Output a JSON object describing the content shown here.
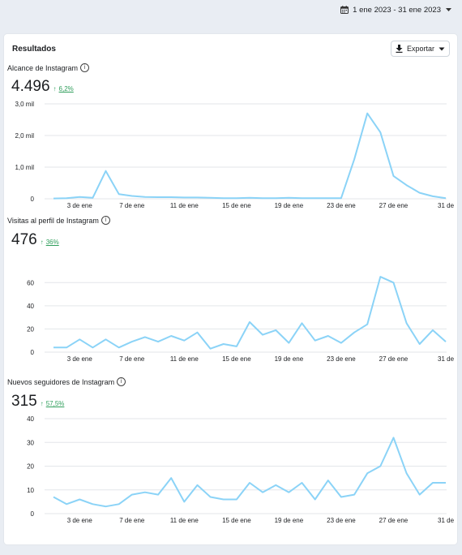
{
  "header": {
    "date_range": "1 ene 2023 - 31 ene 2023"
  },
  "results": {
    "title": "Resultados",
    "export_label": "Exportar"
  },
  "metrics": [
    {
      "label": "Alcance de Instagram",
      "value": "4.496",
      "change": "6,2%"
    },
    {
      "label": "Visitas al perfil de Instagram",
      "value": "476",
      "change": "36%"
    },
    {
      "label": "Nuevos seguidores de Instagram",
      "value": "315",
      "change": "57,5%"
    }
  ],
  "colors": {
    "line": "#8bd3f7",
    "grid": "#e3e6ea",
    "positive": "#2f9e5b"
  },
  "chart_data": [
    {
      "type": "line",
      "title": "Alcance de Instagram",
      "x": [
        1,
        2,
        3,
        4,
        5,
        6,
        7,
        8,
        9,
        10,
        11,
        12,
        13,
        14,
        15,
        16,
        17,
        18,
        19,
        20,
        21,
        22,
        23,
        24,
        25,
        26,
        27,
        28,
        29,
        30,
        31
      ],
      "x_tick_labels": [
        "3 de ene",
        "7 de ene",
        "11 de ene",
        "15 de ene",
        "19 de ene",
        "23 de ene",
        "27 de ene",
        "31 de"
      ],
      "y_tick_labels": [
        "0",
        "1,0 mil",
        "2,0 mil",
        "3,0 mil"
      ],
      "ylim": [
        0,
        3000
      ],
      "series": [
        {
          "values": [
            10,
            20,
            60,
            30,
            880,
            150,
            90,
            60,
            50,
            50,
            40,
            40,
            30,
            20,
            20,
            30,
            20,
            20,
            30,
            20,
            20,
            20,
            20,
            1250,
            2700,
            2100,
            720,
            430,
            190,
            80,
            20
          ]
        }
      ]
    },
    {
      "type": "line",
      "title": "Visitas al perfil de Instagram",
      "x": [
        1,
        2,
        3,
        4,
        5,
        6,
        7,
        8,
        9,
        10,
        11,
        12,
        13,
        14,
        15,
        16,
        17,
        18,
        19,
        20,
        21,
        22,
        23,
        24,
        25,
        26,
        27,
        28,
        29,
        30,
        31
      ],
      "x_tick_labels": [
        "3 de ene",
        "7 de ene",
        "11 de ene",
        "15 de ene",
        "19 de ene",
        "23 de ene",
        "27 de ene",
        "31 de"
      ],
      "y_tick_labels": [
        "0",
        "20",
        "40",
        "60"
      ],
      "ylim": [
        0,
        70
      ],
      "series": [
        {
          "values": [
            4,
            4,
            11,
            4,
            11,
            4,
            9,
            13,
            9,
            14,
            10,
            17,
            3,
            7,
            5,
            26,
            15,
            19,
            8,
            25,
            10,
            14,
            8,
            17,
            24,
            65,
            60,
            25,
            7,
            19,
            9
          ]
        }
      ]
    },
    {
      "type": "line",
      "title": "Nuevos seguidores de Instagram",
      "x": [
        1,
        2,
        3,
        4,
        5,
        6,
        7,
        8,
        9,
        10,
        11,
        12,
        13,
        14,
        15,
        16,
        17,
        18,
        19,
        20,
        21,
        22,
        23,
        24,
        25,
        26,
        27,
        28,
        29,
        30,
        31
      ],
      "x_tick_labels": [
        "3 de ene",
        "7 de ene",
        "11 de ene",
        "15 de ene",
        "19 de ene",
        "23 de ene",
        "27 de ene",
        "31 de"
      ],
      "y_tick_labels": [
        "0",
        "10",
        "20",
        "30",
        "40"
      ],
      "ylim": [
        0,
        40
      ],
      "series": [
        {
          "values": [
            7,
            4,
            6,
            4,
            3,
            4,
            8,
            9,
            8,
            15,
            5,
            12,
            7,
            6,
            6,
            13,
            9,
            12,
            9,
            13,
            6,
            14,
            7,
            8,
            17,
            20,
            32,
            17,
            8,
            13,
            13
          ]
        }
      ]
    }
  ]
}
